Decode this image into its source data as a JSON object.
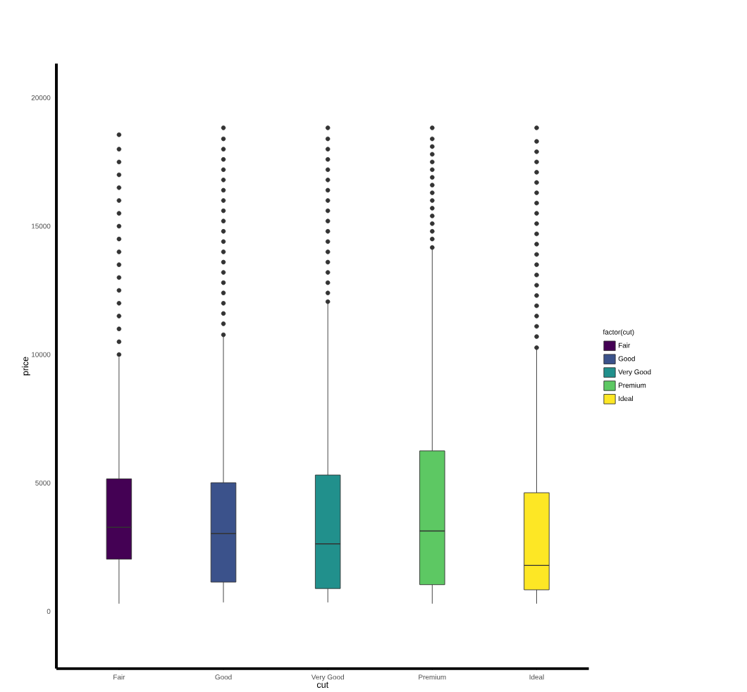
{
  "chart_data": {
    "type": "box",
    "xlabel": "cut",
    "ylabel": "price",
    "legend_title": "factor(cut)",
    "legend": "right",
    "categories": [
      "Fair",
      "Good",
      "Very Good",
      "Premium",
      "Ideal"
    ],
    "ylim": [
      -2230,
      21330
    ],
    "yticks": [
      0,
      5000,
      10000,
      15000,
      20000
    ],
    "series": [
      {
        "name": "Fair",
        "color": "#440154",
        "boxes": [
          {
            "low": 300,
            "q1": 2035,
            "median": 3275,
            "q3": 5160,
            "high": 9900,
            "outliers": [
              10000,
              10500,
              11000,
              11500,
              12000,
              12500,
              13000,
              13500,
              14000,
              14500,
              15000,
              15500,
              16000,
              16500,
              17000,
              17500,
              18000,
              18560
            ]
          },
          null,
          null,
          null,
          null
        ]
      },
      {
        "name": "Good",
        "color": "#3b528b",
        "boxes": [
          null,
          {
            "low": 350,
            "q1": 1140,
            "median": 3030,
            "q3": 5010,
            "high": 10700,
            "outliers": [
              10770,
              11200,
              11600,
              12000,
              12400,
              12800,
              13200,
              13600,
              14000,
              14400,
              14800,
              15200,
              15600,
              16000,
              16400,
              16800,
              17200,
              17600,
              18000,
              18400,
              18830
            ]
          },
          null,
          null,
          null
        ]
      },
      {
        "name": "Very Good",
        "color": "#21908c",
        "boxes": [
          null,
          null,
          {
            "low": 350,
            "q1": 890,
            "median": 2630,
            "q3": 5310,
            "high": 12000,
            "outliers": [
              12060,
              12400,
              12800,
              13200,
              13600,
              14000,
              14400,
              14800,
              15200,
              15600,
              16000,
              16400,
              16800,
              17200,
              17600,
              18000,
              18400,
              18830
            ]
          },
          null,
          null
        ]
      },
      {
        "name": "Premium",
        "color": "#5dc863",
        "boxes": [
          null,
          null,
          null,
          {
            "low": 300,
            "q1": 1040,
            "median": 3130,
            "q3": 6250,
            "high": 14100,
            "outliers": [
              14170,
              14500,
              14800,
              15100,
              15400,
              15700,
              16000,
              16300,
              16600,
              16900,
              17200,
              17500,
              17800,
              18100,
              18400,
              18830
            ]
          },
          null
        ]
      },
      {
        "name": "Ideal",
        "color": "#fde725",
        "boxes": [
          null,
          null,
          null,
          null,
          {
            "low": 300,
            "q1": 840,
            "median": 1790,
            "q3": 4620,
            "high": 10200,
            "outliers": [
              10270,
              10700,
              11100,
              11500,
              11900,
              12300,
              12700,
              13100,
              13500,
              13900,
              14300,
              14700,
              15100,
              15500,
              15900,
              16300,
              16700,
              17100,
              17500,
              17900,
              18300,
              18830
            ]
          }
        ]
      }
    ]
  }
}
